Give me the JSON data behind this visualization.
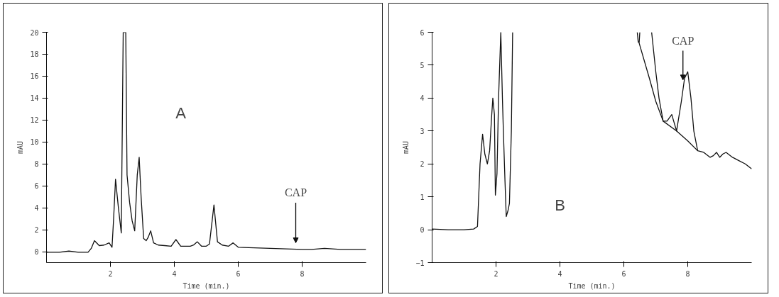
{
  "chart_data": [
    {
      "type": "line",
      "xlabel": "Time (min.)",
      "ylabel": "mAU",
      "xlim": [
        0,
        10
      ],
      "ylim": [
        -1,
        20
      ],
      "xticks": [
        2,
        4,
        6,
        8
      ],
      "yticks": [
        0,
        2,
        4,
        6,
        8,
        10,
        12,
        14,
        16,
        18,
        20
      ],
      "series": [
        {
          "color": "#111111",
          "x": [
            0,
            0.4,
            0.7,
            1.0,
            1.3,
            1.4,
            1.5,
            1.65,
            1.8,
            1.96,
            2.05,
            2.1,
            2.16,
            2.25,
            2.34,
            2.4,
            2.44,
            2.48,
            2.52,
            2.6,
            2.68,
            2.76,
            2.84,
            2.9,
            2.96,
            3.04,
            3.12,
            3.18,
            3.26,
            3.35,
            3.5,
            3.7,
            3.9,
            4.05,
            4.2,
            4.5,
            4.6,
            4.72,
            4.85,
            5.0,
            5.1,
            5.24,
            5.35,
            5.5,
            5.7,
            5.84,
            6.0,
            6.5,
            7.0,
            7.5,
            8.0,
            8.3,
            8.7,
            9.2,
            10
          ],
          "values": [
            -0.05,
            -0.05,
            0.05,
            -0.05,
            -0.05,
            0.3,
            1.0,
            0.55,
            0.6,
            0.8,
            0.4,
            3.0,
            6.6,
            4.0,
            1.7,
            20,
            20,
            20,
            7.0,
            4.5,
            2.8,
            1.9,
            7.0,
            8.6,
            5.0,
            1.2,
            1.0,
            1.3,
            1.9,
            0.8,
            0.6,
            0.55,
            0.5,
            1.1,
            0.5,
            0.5,
            0.6,
            0.9,
            0.5,
            0.5,
            0.7,
            4.26,
            0.9,
            0.6,
            0.5,
            0.8,
            0.4,
            0.35,
            0.3,
            0.25,
            0.2,
            0.2,
            0.3,
            0.2,
            0.2
          ]
        }
      ],
      "annotations": [
        "A",
        "CAP"
      ]
    },
    {
      "type": "line",
      "xlabel": "Time (min.)",
      "ylabel": "mAU",
      "xlim": [
        0,
        10
      ],
      "ylim": [
        -1,
        6
      ],
      "xticks": [
        2,
        4,
        6,
        8
      ],
      "yticks": [
        -1,
        0,
        1,
        2,
        3,
        4,
        5,
        6
      ],
      "series": [
        {
          "color": "#111111",
          "x": [
            0,
            0.5,
            1.0,
            1.3,
            1.42,
            1.5,
            1.58,
            1.65,
            1.73,
            1.8,
            1.86,
            1.9,
            1.95,
            1.98,
            2.03,
            2.08,
            2.15,
            2.2,
            2.23,
            2.28,
            2.32,
            2.38,
            2.42,
            2.48,
            2.52,
            2.53,
            6.42,
            6.45,
            6.48,
            6.5,
            6.52,
            6.87,
            7.0,
            7.1,
            7.23,
            7.35,
            7.5,
            7.65,
            7.8,
            7.9,
            8.0,
            8.1,
            8.19,
            8.31,
            8.5,
            8.7,
            8.8,
            8.9,
            9.0,
            9.1,
            9.2,
            9.4,
            9.6,
            9.8,
            10
          ],
          "values": [
            0.02,
            0.0,
            0.0,
            0.02,
            0.1,
            2.0,
            2.9,
            2.3,
            2.0,
            2.4,
            3.4,
            4.0,
            3.5,
            1.05,
            1.7,
            4.0,
            6,
            4,
            3.0,
            1.5,
            0.4,
            0.6,
            0.8,
            3.0,
            6,
            null,
            6,
            5.7,
            5.7,
            6,
            null,
            6,
            4.8,
            4.0,
            3.3,
            3.3,
            3.5,
            3.0,
            3.9,
            4.6,
            4.8,
            4.0,
            3.0,
            2.4,
            2.35,
            2.2,
            2.25,
            2.35,
            2.2,
            2.3,
            2.35,
            2.2,
            2.1,
            2.0,
            1.85
          ]
        },
        {
          "color": "#111111",
          "x": [
            6.47,
            6.8,
            7.0,
            7.23,
            7.65,
            8.0,
            8.31
          ],
          "values": [
            5.7,
            4.6,
            3.9,
            3.3,
            3.0,
            2.7,
            2.4
          ]
        }
      ],
      "annotations": [
        "B",
        {
          "text": "CAP",
          "x": 7.85,
          "y": 4.55
        }
      ]
    }
  ]
}
